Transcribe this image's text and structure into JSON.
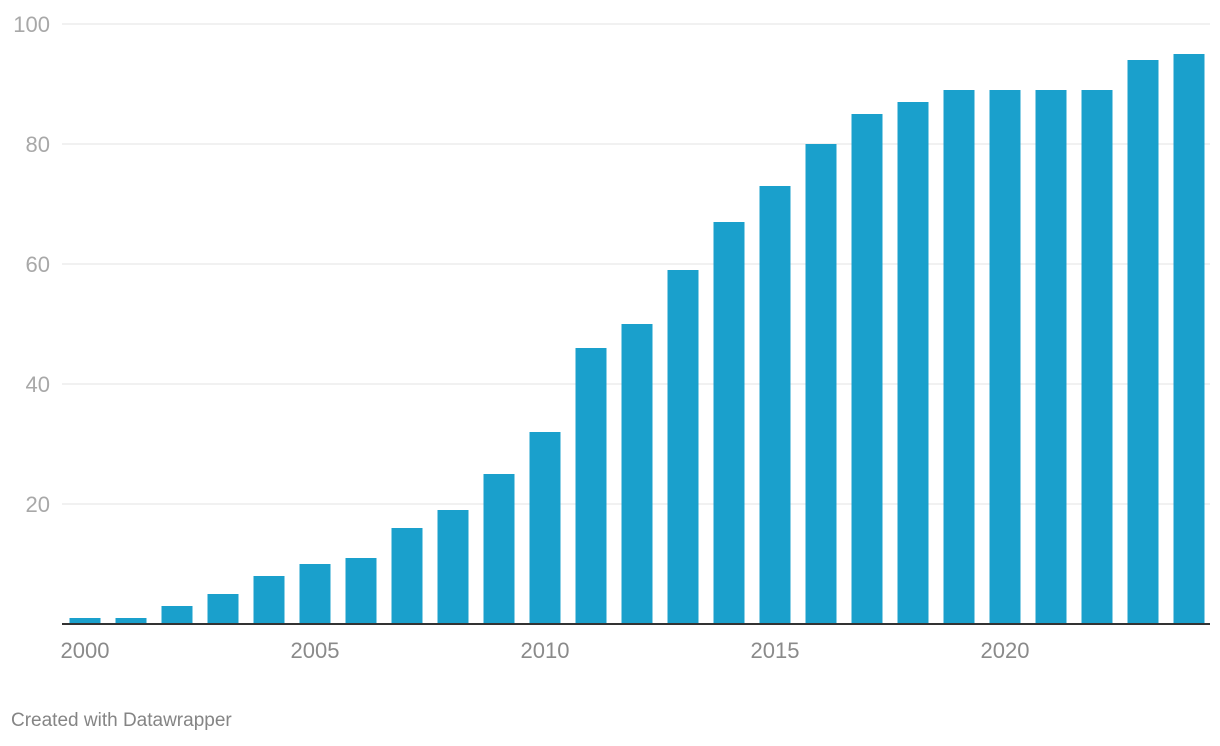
{
  "chart_data": {
    "type": "bar",
    "title": "",
    "xlabel": "",
    "ylabel": "",
    "categories": [
      "2000",
      "2001",
      "2002",
      "2003",
      "2004",
      "2005",
      "2006",
      "2007",
      "2008",
      "2009",
      "2010",
      "2011",
      "2012",
      "2013",
      "2014",
      "2015",
      "2016",
      "2017",
      "2018",
      "2019",
      "2020",
      "2021",
      "2022",
      "2023",
      "2024"
    ],
    "values": [
      1,
      1,
      3,
      5,
      8,
      10,
      11,
      16,
      19,
      25,
      32,
      46,
      50,
      59,
      67,
      73,
      80,
      85,
      87,
      89,
      89,
      89,
      89,
      94,
      95
    ],
    "ylim": [
      0,
      100
    ],
    "yticks": [
      20,
      40,
      60,
      80,
      100
    ],
    "xtick_labels": [
      "2000",
      "2005",
      "2010",
      "2015",
      "2020"
    ],
    "grid": true,
    "legend": "none",
    "bar_color": "#1aa0cc"
  },
  "footer": {
    "credit": "Created with Datawrapper"
  },
  "colors": {
    "bar": "#1aa0cc",
    "grid": "#e3e3e3",
    "baseline": "#333333",
    "tick_text": "#a8a8a8",
    "footer_text": "#858585"
  }
}
